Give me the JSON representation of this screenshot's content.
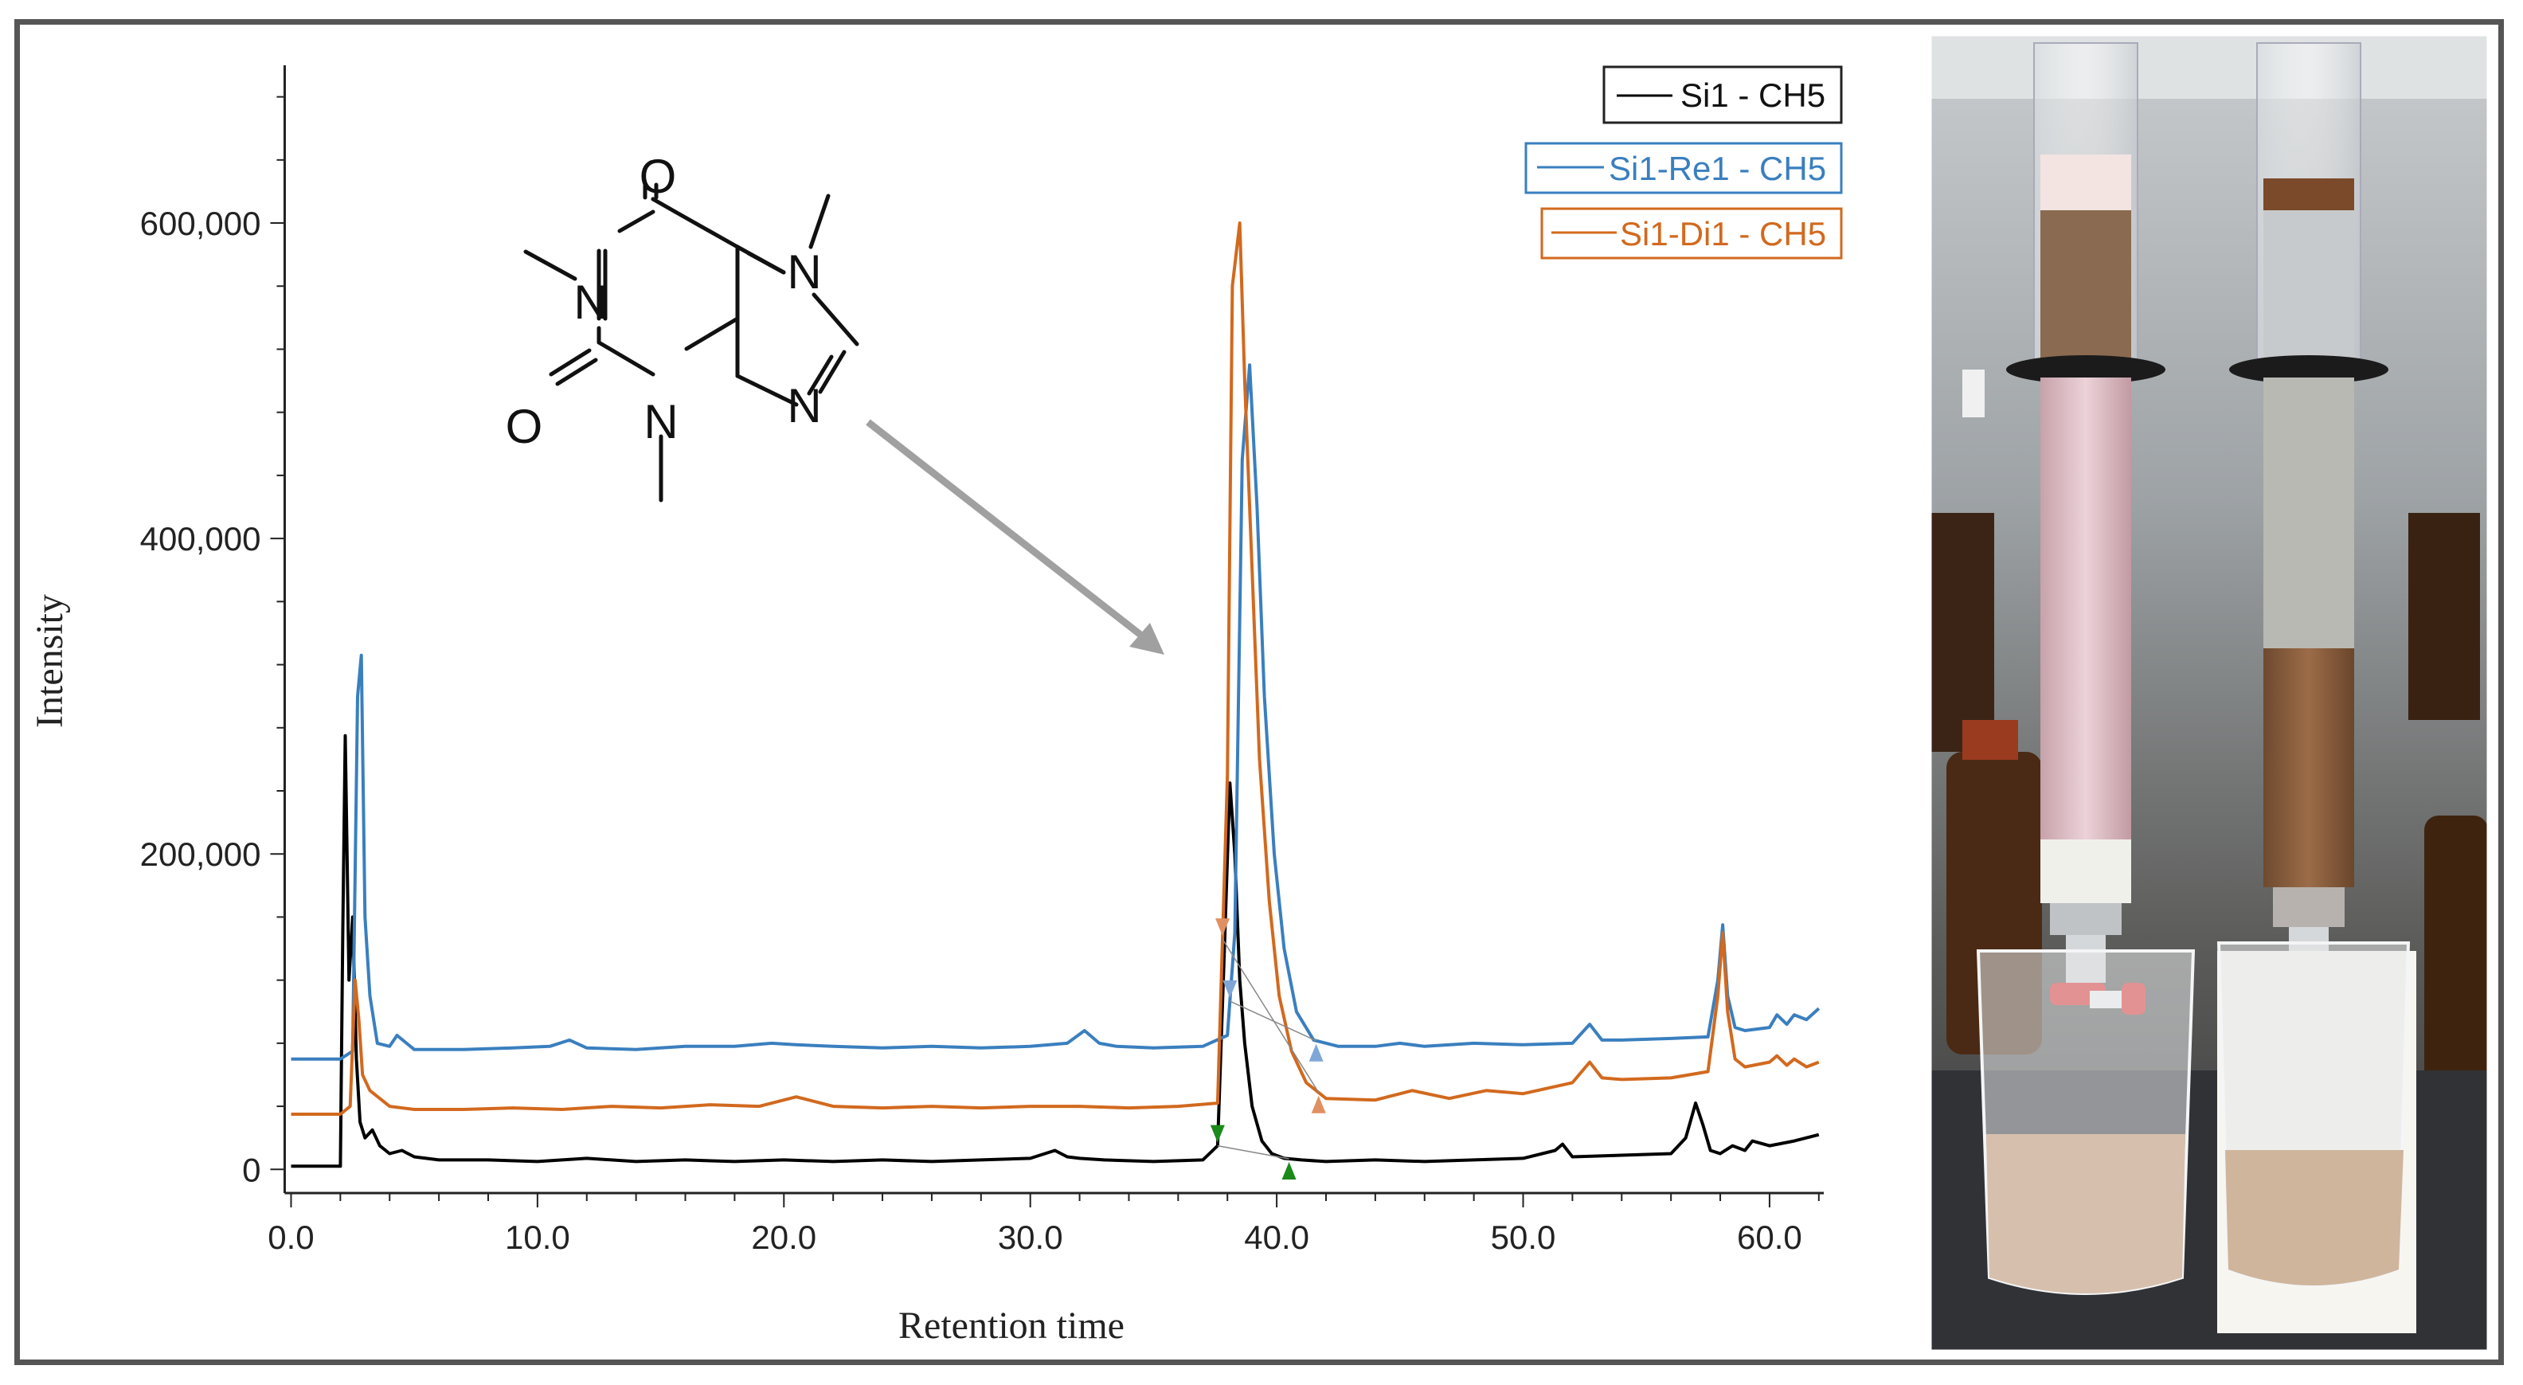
{
  "chart_data": {
    "type": "line",
    "xlabel": "Retention time",
    "ylabel": "Intensity",
    "xlim": [
      -0.5,
      62.2
    ],
    "ylim": [
      -15000,
      700000
    ],
    "x_ticks": [
      0,
      10,
      20,
      30,
      40,
      50,
      60
    ],
    "x_tick_labels": [
      "0.0",
      "10.0",
      "20.0",
      "30.0",
      "40.0",
      "50.0",
      "60.0"
    ],
    "y_ticks": [
      0,
      200000,
      400000,
      600000
    ],
    "y_tick_labels": [
      "0",
      "200,000",
      "400,000",
      "600,000"
    ],
    "grid": false,
    "legend_position": "top-right",
    "series": [
      {
        "name": "Si1 - CH5",
        "color": "#000000",
        "x": [
          0,
          2.0,
          2.1,
          2.2,
          2.35,
          2.5,
          2.65,
          2.8,
          3.0,
          3.3,
          3.6,
          4.0,
          4.5,
          5.0,
          6.0,
          8.0,
          10.0,
          12.0,
          14.0,
          16.0,
          18.0,
          20.0,
          22.0,
          24.0,
          26.0,
          28.0,
          30.0,
          31.0,
          31.5,
          32.0,
          33.0,
          35.0,
          37.0,
          37.6,
          37.9,
          38.1,
          38.3,
          38.5,
          38.7,
          39.0,
          39.4,
          39.8,
          40.3,
          41.0,
          42.0,
          44.0,
          46.0,
          48.0,
          50.0,
          51.3,
          51.6,
          52.0,
          54.0,
          56.0,
          56.6,
          57.0,
          57.3,
          57.6,
          58.0,
          58.5,
          59.0,
          59.3,
          60.0,
          61.0,
          62.0
        ],
        "y": [
          2000,
          2000,
          150000,
          275000,
          120000,
          160000,
          70000,
          30000,
          20000,
          25000,
          15000,
          10000,
          12000,
          8000,
          6000,
          6000,
          5000,
          7000,
          5000,
          6000,
          5000,
          6000,
          5000,
          6000,
          5000,
          6000,
          7000,
          12000,
          8000,
          7000,
          6000,
          5000,
          6000,
          15000,
          150000,
          245000,
          200000,
          120000,
          80000,
          40000,
          18000,
          10000,
          7000,
          6000,
          5000,
          6000,
          5000,
          6000,
          7000,
          12000,
          16000,
          8000,
          9000,
          10000,
          20000,
          42000,
          28000,
          12000,
          10000,
          15000,
          12000,
          18000,
          15000,
          18000,
          22000
        ]
      },
      {
        "name": "Si1-Re1 - CH5",
        "color": "#3a7fbf",
        "x": [
          0,
          2.0,
          2.5,
          2.7,
          2.85,
          3.0,
          3.2,
          3.5,
          4.0,
          4.3,
          5.0,
          7.0,
          9.0,
          10.5,
          11.3,
          12.0,
          14.0,
          16.0,
          18.0,
          19.5,
          20.5,
          22.0,
          24.0,
          26.0,
          28.0,
          30.0,
          31.5,
          32.2,
          32.8,
          33.5,
          35.0,
          37.0,
          38.0,
          38.3,
          38.6,
          38.9,
          39.2,
          39.5,
          39.9,
          40.3,
          40.8,
          41.5,
          42.5,
          44.0,
          45.0,
          46.0,
          48.0,
          50.0,
          52.0,
          52.7,
          53.2,
          54.0,
          56.0,
          57.5,
          57.9,
          58.1,
          58.3,
          58.6,
          59.0,
          60.0,
          60.3,
          60.7,
          61.0,
          61.5,
          62.0
        ],
        "y": [
          70000,
          70000,
          75000,
          300000,
          326000,
          160000,
          110000,
          80000,
          78000,
          85000,
          76000,
          76000,
          77000,
          78000,
          82000,
          77000,
          76000,
          78000,
          78000,
          80000,
          79000,
          78000,
          77000,
          78000,
          77000,
          78000,
          80000,
          88000,
          80000,
          78000,
          77000,
          78000,
          85000,
          150000,
          450000,
          510000,
          420000,
          300000,
          200000,
          140000,
          100000,
          82000,
          78000,
          78000,
          80000,
          78000,
          80000,
          79000,
          80000,
          92000,
          82000,
          82000,
          83000,
          84000,
          120000,
          155000,
          110000,
          90000,
          88000,
          90000,
          98000,
          92000,
          98000,
          95000,
          102000
        ]
      },
      {
        "name": "Si1-Di1 - CH5",
        "color": "#d2691e",
        "x": [
          0,
          2.0,
          2.4,
          2.6,
          2.75,
          2.9,
          3.2,
          3.6,
          4.0,
          5.0,
          7.0,
          9.0,
          11.0,
          13.0,
          15.0,
          17.0,
          19.0,
          20.5,
          22.0,
          24.0,
          26.0,
          28.0,
          30.0,
          32.0,
          34.0,
          36.0,
          37.6,
          38.0,
          38.2,
          38.5,
          38.7,
          39.0,
          39.3,
          39.7,
          40.1,
          40.6,
          41.2,
          42.0,
          44.0,
          45.5,
          47.0,
          48.5,
          50.0,
          52.0,
          52.7,
          53.2,
          54.0,
          56.0,
          57.5,
          57.9,
          58.1,
          58.3,
          58.6,
          59.0,
          60.0,
          60.3,
          60.7,
          61.0,
          61.5,
          62.0
        ],
        "y": [
          35000,
          35000,
          40000,
          120000,
          95000,
          60000,
          50000,
          45000,
          40000,
          38000,
          38000,
          39000,
          38000,
          40000,
          39000,
          41000,
          40000,
          46000,
          40000,
          39000,
          40000,
          39000,
          40000,
          40000,
          39000,
          40000,
          42000,
          250000,
          560000,
          600000,
          500000,
          380000,
          260000,
          170000,
          110000,
          75000,
          55000,
          45000,
          44000,
          50000,
          45000,
          50000,
          48000,
          55000,
          68000,
          58000,
          57000,
          58000,
          62000,
          110000,
          150000,
          100000,
          70000,
          65000,
          68000,
          72000,
          66000,
          70000,
          65000,
          68000
        ]
      }
    ],
    "integration_markers": [
      {
        "series": "Si1 - CH5",
        "start_x": 37.6,
        "end_x": 40.5,
        "start_color": "#1a8a1a",
        "end_color": "#1a8a1a"
      },
      {
        "series": "Si1-Re1 - CH5",
        "start_x": 38.1,
        "end_x": 41.6,
        "start_color": "#7fa6d6",
        "end_color": "#7fa6d6"
      },
      {
        "series": "Si1-Di1 - CH5",
        "start_x": 37.8,
        "end_x": 41.7,
        "start_color": "#e09060",
        "end_color": "#e09060"
      }
    ],
    "annotations": [
      {
        "type": "structure",
        "name": "caffeine",
        "atom_labels": [
          "O",
          "N",
          "N",
          "O",
          "N",
          "N"
        ],
        "arrow_to_x": 35.5
      }
    ]
  },
  "photo": {
    "description_icon": "photo-chromatography-columns",
    "left_column_color": "#d8b8c0",
    "right_column_color": "#8a5a38"
  }
}
